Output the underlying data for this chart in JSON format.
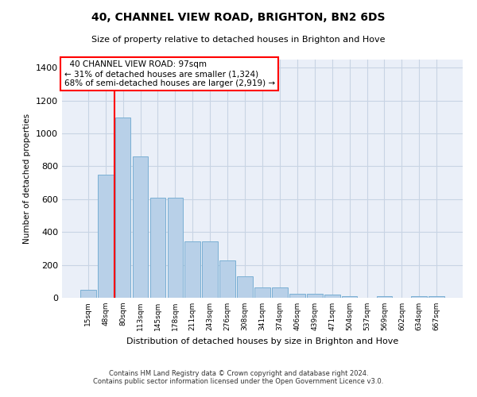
{
  "title": "40, CHANNEL VIEW ROAD, BRIGHTON, BN2 6DS",
  "subtitle": "Size of property relative to detached houses in Brighton and Hove",
  "xlabel": "Distribution of detached houses by size in Brighton and Hove",
  "ylabel": "Number of detached properties",
  "footnote1": "Contains HM Land Registry data © Crown copyright and database right 2024.",
  "footnote2": "Contains public sector information licensed under the Open Government Licence v3.0.",
  "categories": [
    "15sqm",
    "48sqm",
    "80sqm",
    "113sqm",
    "145sqm",
    "178sqm",
    "211sqm",
    "243sqm",
    "276sqm",
    "308sqm",
    "341sqm",
    "374sqm",
    "406sqm",
    "439sqm",
    "471sqm",
    "504sqm",
    "537sqm",
    "569sqm",
    "602sqm",
    "634sqm",
    "667sqm"
  ],
  "values": [
    48,
    750,
    1095,
    860,
    610,
    610,
    345,
    345,
    225,
    130,
    65,
    65,
    25,
    25,
    20,
    10,
    0,
    10,
    0,
    10,
    10
  ],
  "bar_color": "#b8d0e8",
  "bar_edge_color": "#7aafd4",
  "grid_color": "#c8d4e4",
  "background_color": "#eaeff8",
  "annotation_box_text": "  40 CHANNEL VIEW ROAD: 97sqm\n← 31% of detached houses are smaller (1,324)\n68% of semi-detached houses are larger (2,919) →",
  "vline_x_index": 2,
  "vline_color": "red",
  "annotation_box_color": "white",
  "annotation_box_edge_color": "red",
  "ylim": [
    0,
    1450
  ],
  "yticks": [
    0,
    200,
    400,
    600,
    800,
    1000,
    1200,
    1400
  ]
}
